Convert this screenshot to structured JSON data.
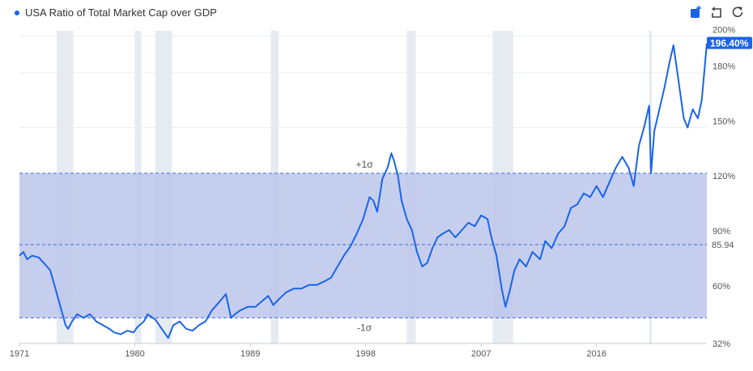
{
  "legend": {
    "label": "USA Ratio of Total Market Cap over GDP",
    "color": "#1a64e8"
  },
  "toolbar": {
    "icons": [
      "chart-add-icon",
      "undo-icon",
      "refresh-icon"
    ]
  },
  "colors": {
    "line": "#1a64e8",
    "band": "#b9c3ea",
    "dash": "#3a6fd6",
    "recession": "#e6ebf1",
    "badge": "#1a64e8"
  },
  "chart_data": {
    "type": "line",
    "title": "USA Ratio of Total Market Cap over GDP",
    "xlabel": "",
    "ylabel": "",
    "x_ticks": [
      "1971",
      "1980",
      "1989",
      "1998",
      "2007",
      "2016"
    ],
    "x_tick_years": [
      1971,
      1980,
      1989,
      1998,
      2007,
      2016
    ],
    "y_ticks": [
      "32%",
      "60%",
      "90%",
      "120%",
      "150%",
      "180%",
      "200%"
    ],
    "y_tick_values": [
      32,
      60,
      90,
      120,
      150,
      180,
      200
    ],
    "xlim": [
      1971,
      2024.6
    ],
    "ylim": [
      32,
      202
    ],
    "sigma_band": {
      "upper": 125,
      "lower": 46,
      "upper_label": "+1σ",
      "lower_label": "-1σ"
    },
    "mean_line": {
      "value": 86,
      "label": "85.94"
    },
    "current_value_label": "196.40%",
    "recessions": [
      [
        1973.9,
        1975.2
      ],
      [
        1980.0,
        1980.5
      ],
      [
        1981.6,
        1982.9
      ],
      [
        1990.6,
        1991.2
      ],
      [
        2001.2,
        2001.9
      ],
      [
        2007.9,
        2009.5
      ],
      [
        2020.1,
        2020.3
      ]
    ],
    "series": [
      {
        "name": "USA Ratio of Total Market Cap over GDP",
        "x": [
          1971.0,
          1971.3,
          1971.6,
          1972.0,
          1972.5,
          1972.9,
          1973.4,
          1973.8,
          1974.2,
          1974.6,
          1974.8,
          1975.1,
          1975.5,
          1976.0,
          1976.5,
          1977.0,
          1977.5,
          1978.0,
          1978.4,
          1978.9,
          1979.4,
          1979.9,
          1980.2,
          1980.7,
          1981.0,
          1981.6,
          1982.1,
          1982.6,
          1983.0,
          1983.5,
          1984.0,
          1984.5,
          1985.0,
          1985.5,
          1986.0,
          1986.5,
          1987.1,
          1987.5,
          1987.8,
          1988.2,
          1988.8,
          1989.4,
          1989.9,
          1990.4,
          1990.8,
          1991.2,
          1991.8,
          1992.4,
          1993.0,
          1993.6,
          1994.2,
          1994.8,
          1995.3,
          1995.8,
          1996.3,
          1996.8,
          1997.3,
          1997.8,
          1998.3,
          1998.6,
          1998.9,
          1999.3,
          1999.7,
          2000.0,
          2000.2,
          2000.5,
          2000.8,
          2001.2,
          2001.6,
          2002.0,
          2002.4,
          2002.8,
          2003.2,
          2003.6,
          2004.0,
          2004.5,
          2005.0,
          2005.5,
          2006.0,
          2006.5,
          2007.0,
          2007.5,
          2007.8,
          2008.2,
          2008.6,
          2008.9,
          2009.2,
          2009.6,
          2010.0,
          2010.5,
          2011.0,
          2011.6,
          2012.0,
          2012.5,
          2013.0,
          2013.5,
          2014.0,
          2014.5,
          2015.0,
          2015.5,
          2016.0,
          2016.5,
          2017.0,
          2017.5,
          2018.0,
          2018.5,
          2018.9,
          2019.3,
          2019.7,
          2020.1,
          2020.25,
          2020.5,
          2020.9,
          2021.3,
          2021.7,
          2022.0,
          2022.4,
          2022.8,
          2023.1,
          2023.5,
          2023.9,
          2024.2,
          2024.6
        ],
        "y": [
          80,
          82,
          78,
          80,
          79,
          76,
          72,
          62,
          52,
          42,
          40,
          44,
          48,
          46,
          48,
          44,
          42,
          40,
          38,
          37,
          39,
          38,
          41,
          44,
          48,
          45,
          40,
          35,
          42,
          44,
          40,
          39,
          42,
          44,
          50,
          54,
          59,
          46,
          48,
          50,
          52,
          52,
          55,
          58,
          53,
          56,
          60,
          62,
          62,
          64,
          64,
          66,
          68,
          74,
          80,
          85,
          92,
          100,
          112,
          110,
          104,
          122,
          128,
          136,
          132,
          124,
          110,
          100,
          94,
          82,
          74,
          76,
          84,
          90,
          92,
          94,
          90,
          94,
          98,
          96,
          102,
          100,
          90,
          80,
          62,
          52,
          60,
          72,
          78,
          74,
          82,
          78,
          88,
          84,
          92,
          96,
          106,
          108,
          114,
          112,
          118,
          112,
          120,
          128,
          134,
          128,
          118,
          140,
          150,
          162,
          125,
          148,
          160,
          172,
          186,
          195,
          175,
          155,
          150,
          160,
          155,
          165,
          196
        ]
      }
    ]
  }
}
